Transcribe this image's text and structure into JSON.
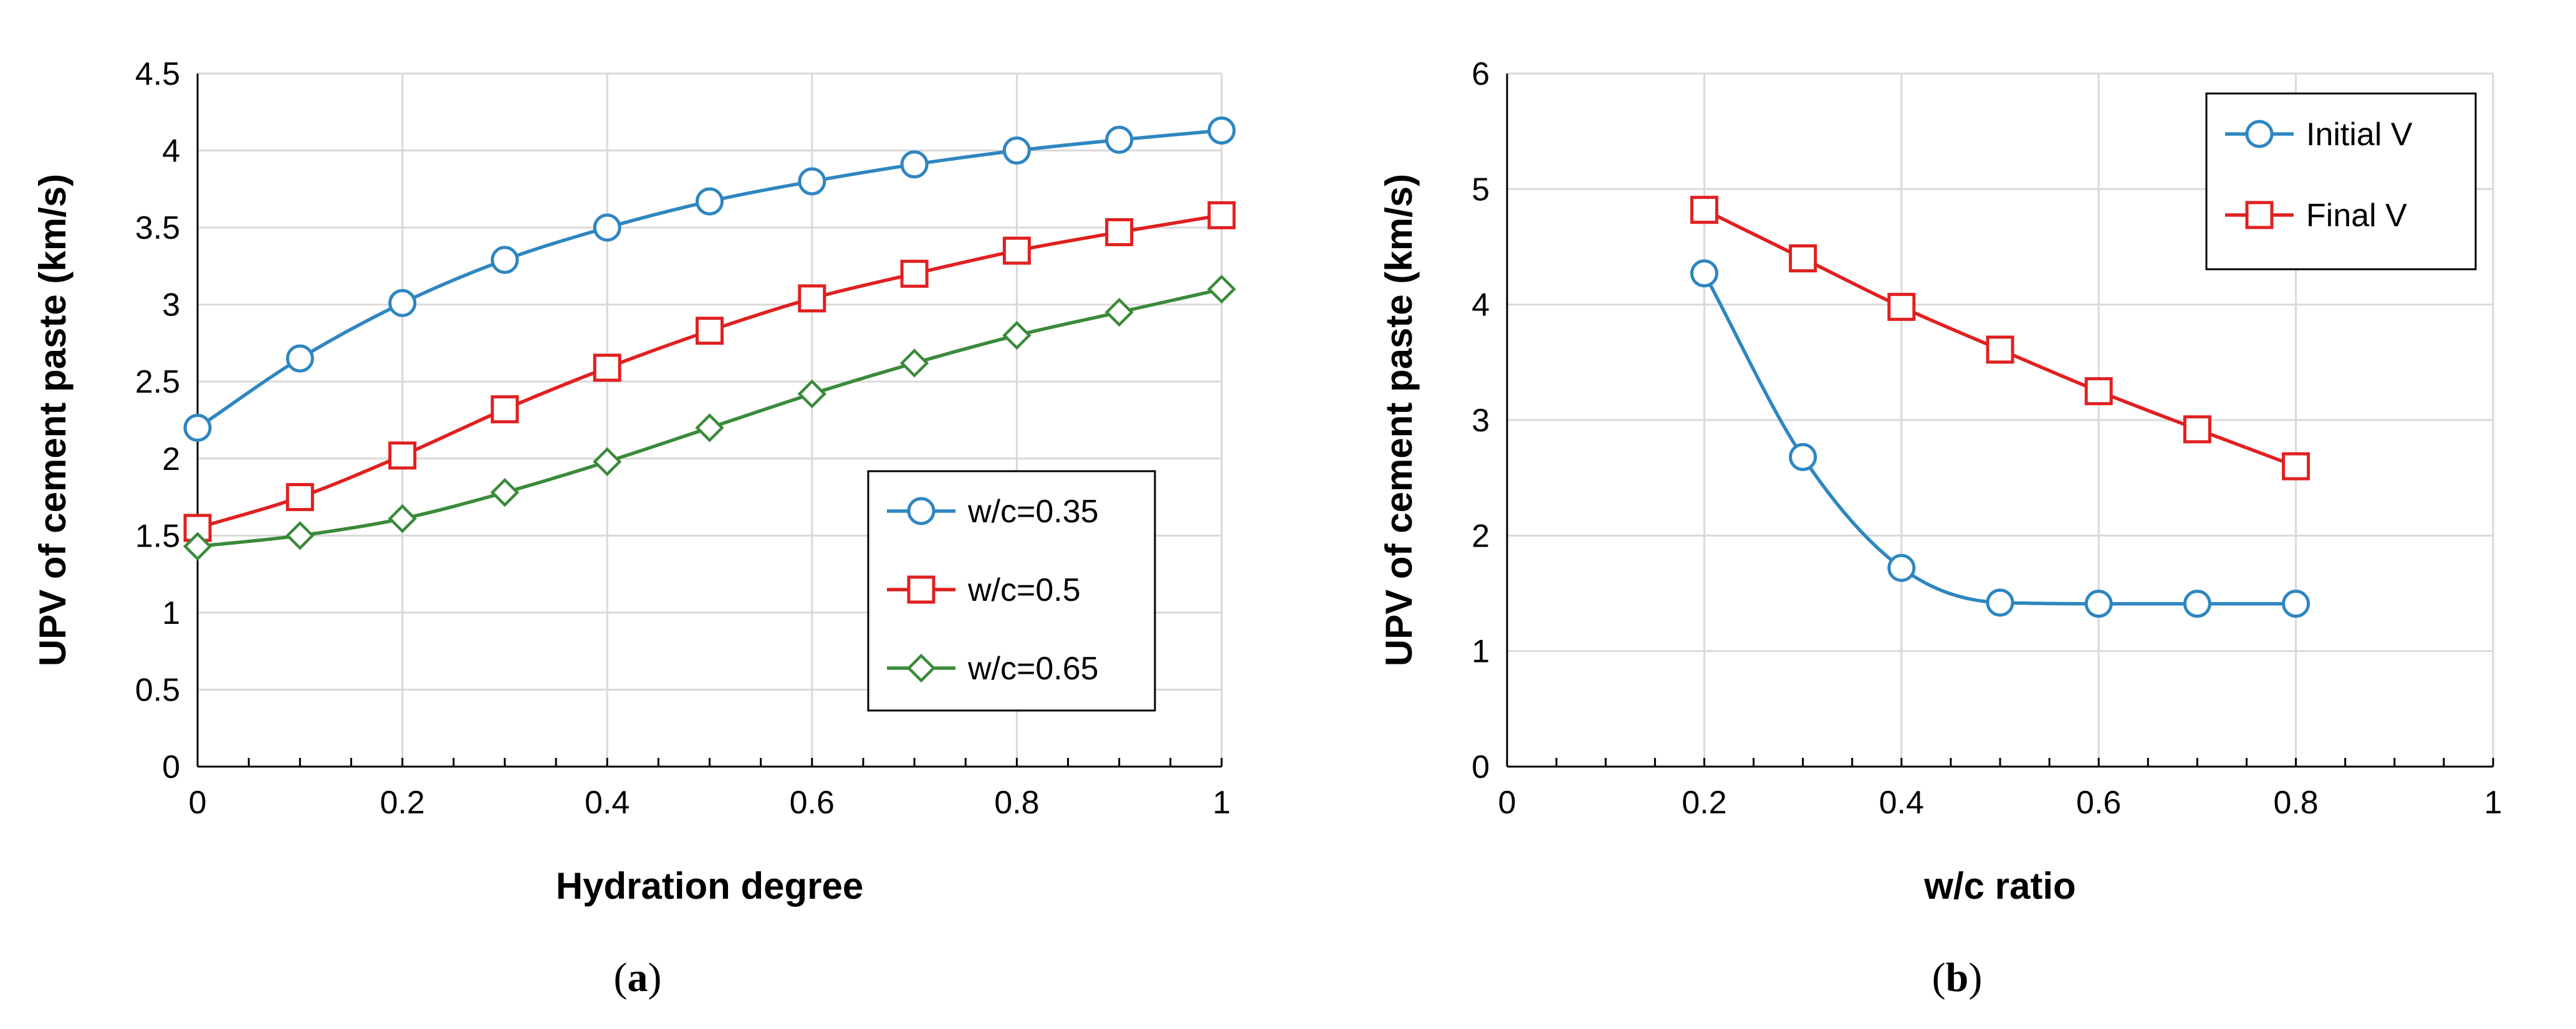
{
  "chart_data": [
    {
      "type": "line",
      "caption_letter": "a",
      "xlabel": "Hydration degree",
      "ylabel": "UPV of cement paste (km/s)",
      "xlim": [
        0,
        1
      ],
      "ylim": [
        0,
        4.5
      ],
      "xticks": [
        "0",
        "0.2",
        "0.4",
        "0.6",
        "0.8",
        "1"
      ],
      "yticks": [
        "0",
        "0.5",
        "1",
        "1.5",
        "2",
        "2.5",
        "3",
        "3.5",
        "4",
        "4.5"
      ],
      "grid": true,
      "legend_position": "bottom-right",
      "series": [
        {
          "name": "w/c=0.35",
          "color": "#2E86C1",
          "marker": "circle",
          "x": [
            0,
            0.1,
            0.2,
            0.3,
            0.4,
            0.5,
            0.6,
            0.7,
            0.8,
            0.9,
            1
          ],
          "y": [
            2.2,
            2.65,
            3.01,
            3.29,
            3.5,
            3.67,
            3.8,
            3.91,
            4.0,
            4.07,
            4.13
          ]
        },
        {
          "name": "w/c=0.5",
          "color": "#E02020",
          "marker": "square",
          "x": [
            0,
            0.1,
            0.2,
            0.3,
            0.4,
            0.5,
            0.6,
            0.7,
            0.8,
            0.9,
            1
          ],
          "y": [
            1.55,
            1.75,
            2.02,
            2.32,
            2.59,
            2.83,
            3.04,
            3.2,
            3.35,
            3.47,
            3.58
          ]
        },
        {
          "name": "w/c=0.65",
          "color": "#3A8A3A",
          "marker": "diamond",
          "x": [
            0,
            0.1,
            0.2,
            0.3,
            0.4,
            0.5,
            0.6,
            0.7,
            0.8,
            0.9,
            1
          ],
          "y": [
            1.43,
            1.5,
            1.61,
            1.78,
            1.98,
            2.2,
            2.42,
            2.62,
            2.8,
            2.95,
            3.1
          ]
        }
      ]
    },
    {
      "type": "line",
      "caption_letter": "b",
      "xlabel": "w/c ratio",
      "ylabel": "UPV of cement paste (km/s)",
      "xlim": [
        0,
        1
      ],
      "ylim": [
        0,
        6
      ],
      "xticks": [
        "0",
        "0.2",
        "0.4",
        "0.6",
        "0.8",
        "1"
      ],
      "yticks": [
        "0",
        "1",
        "2",
        "3",
        "4",
        "5",
        "6"
      ],
      "grid": true,
      "legend_position": "top-right",
      "series": [
        {
          "name": "Initial V",
          "color": "#2E86C1",
          "marker": "circle",
          "x": [
            0.2,
            0.3,
            0.4,
            0.5,
            0.6,
            0.7,
            0.8
          ],
          "y": [
            4.27,
            2.68,
            1.72,
            1.42,
            1.41,
            1.41,
            1.41
          ]
        },
        {
          "name": "Final V",
          "color": "#E02020",
          "marker": "square",
          "x": [
            0.2,
            0.3,
            0.4,
            0.5,
            0.6,
            0.7,
            0.8
          ],
          "y": [
            4.82,
            4.4,
            3.98,
            3.61,
            3.25,
            2.92,
            2.6
          ]
        }
      ]
    }
  ]
}
